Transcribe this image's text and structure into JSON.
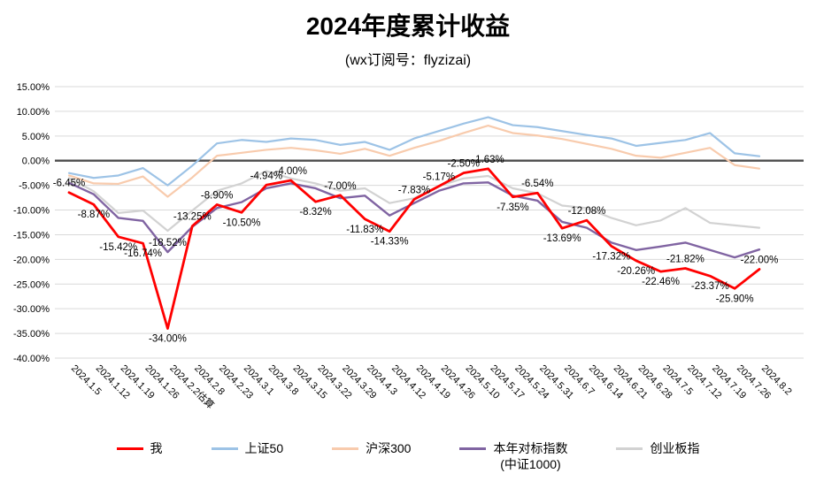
{
  "chart_data": {
    "type": "line",
    "title": "2024年度累计收益",
    "subtitle": "(wx订阅号：flyzizai)",
    "x": [
      "2024.1.5",
      "2024.1.12",
      "2024.1.19",
      "2024.1.26",
      "2024.2.2估算",
      "2024.2.8",
      "2024.2.23",
      "2024.3.1",
      "2024.3.8",
      "2024.3.15",
      "2024.3.22",
      "2024.3.29",
      "2024.4.3",
      "2024.4.12",
      "2024.4.19",
      "2024.4.26",
      "2024.5.10",
      "2024.5.17",
      "2024.5.24",
      "2024.5.31",
      "2024.6.7",
      "2024.6.14",
      "2024.6.21",
      "2024.6.28",
      "2024.7.5",
      "2024.7.12",
      "2024.7.19",
      "2024.7.26",
      "2024.8.2"
    ],
    "ylim": [
      -40,
      15
    ],
    "ytick_step": 5,
    "ytick_format": "percent_2dp",
    "grid": true,
    "zero_line_color": "#4d4d4d",
    "gridline_color": "#d9d9d9",
    "legend_position": "bottom",
    "draw_order": [
      1,
      2,
      4,
      3,
      0
    ],
    "series": [
      {
        "name": "我",
        "legend": {
          "label": "我"
        },
        "color": "#ff0000",
        "width": 2.8,
        "values": [
          -6.45,
          -8.87,
          -15.42,
          -16.74,
          -34.0,
          -13.25,
          -8.9,
          -10.5,
          -4.94,
          -4.0,
          -8.32,
          -7.0,
          -11.83,
          -14.33,
          -7.83,
          -5.17,
          -2.5,
          -1.63,
          -7.35,
          -6.54,
          -13.69,
          -12.08,
          -17.32,
          -20.26,
          -22.46,
          -21.82,
          -23.37,
          -25.9,
          -22.0
        ],
        "labels": [
          "-6.45%",
          "-8.87%",
          "-15.42%",
          "-16.74%",
          "-34.00%",
          "-13.25%",
          "-8.90%",
          "-10.50%",
          "-4.94%",
          "-4.00%",
          "-8.32%",
          "-7.00%",
          "-11.83%",
          "-14.33%",
          "-7.83%",
          "-5.17%",
          "-2.50%",
          "-1.63%",
          "-7.35%",
          "-6.54%",
          "-13.69%",
          "-12.08%",
          "-17.32%",
          "-20.26%",
          "-22.46%",
          "-21.82%",
          "-23.37%",
          "-25.90%",
          "-22.00%"
        ]
      },
      {
        "name": "上证50",
        "legend": {
          "label": "上证50"
        },
        "color": "#9dc3e6",
        "width": 2.2,
        "values": [
          -2.5,
          -3.5,
          -3.0,
          -1.5,
          -5.0,
          -1.0,
          3.5,
          4.2,
          3.8,
          4.5,
          4.2,
          3.2,
          3.8,
          2.2,
          4.5,
          6.0,
          7.5,
          8.8,
          7.2,
          6.8,
          6.0,
          5.2,
          4.5,
          3.0,
          3.6,
          4.2,
          5.6,
          1.5,
          0.9
        ]
      },
      {
        "name": "沪深300",
        "legend": {
          "label": "沪深300"
        },
        "color": "#f8cbad",
        "width": 2.2,
        "values": [
          -3.0,
          -4.6,
          -4.7,
          -3.2,
          -7.3,
          -3.4,
          1.0,
          1.6,
          2.2,
          2.6,
          2.1,
          1.4,
          2.4,
          1.0,
          2.6,
          4.0,
          5.6,
          7.1,
          5.6,
          5.1,
          4.4,
          3.4,
          2.4,
          1.0,
          0.6,
          1.6,
          2.6,
          -0.9,
          -1.6
        ]
      },
      {
        "name": "本年对标指数(中证1000)",
        "legend": {
          "label": "本年对标指数",
          "sublabel": "(中证1000)"
        },
        "color": "#8064a2",
        "width": 2.4,
        "values": [
          -4.5,
          -6.8,
          -11.6,
          -12.2,
          -18.52,
          -13.4,
          -9.6,
          -8.4,
          -5.6,
          -4.6,
          -5.6,
          -7.6,
          -7.1,
          -11.1,
          -8.6,
          -6.1,
          -4.6,
          -4.4,
          -7.1,
          -8.1,
          -12.4,
          -13.6,
          -16.6,
          -18.1,
          -17.4,
          -16.6,
          -18.1,
          -19.6,
          -18.0
        ],
        "labels": [
          null,
          null,
          null,
          null,
          "-18.52%",
          null,
          null,
          null,
          null,
          null,
          null,
          null,
          null,
          null,
          null,
          null,
          null,
          null,
          null,
          null,
          null,
          null,
          null,
          null,
          null,
          null,
          null,
          null,
          null
        ],
        "label_sides": {
          "4": "above"
        }
      },
      {
        "name": "创业板指",
        "legend": {
          "label": "创业板指"
        },
        "color": "#d2d2d2",
        "width": 2.2,
        "values": [
          -3.5,
          -6.2,
          -10.6,
          -10.1,
          -14.2,
          -10.1,
          -6.1,
          -4.6,
          -2.1,
          -3.6,
          -4.6,
          -6.1,
          -5.6,
          -8.6,
          -7.6,
          -5.1,
          -3.6,
          -3.1,
          -5.6,
          -6.6,
          -9.1,
          -9.6,
          -11.6,
          -13.1,
          -12.1,
          -9.6,
          -12.6,
          -13.1,
          -13.6
        ]
      }
    ]
  }
}
